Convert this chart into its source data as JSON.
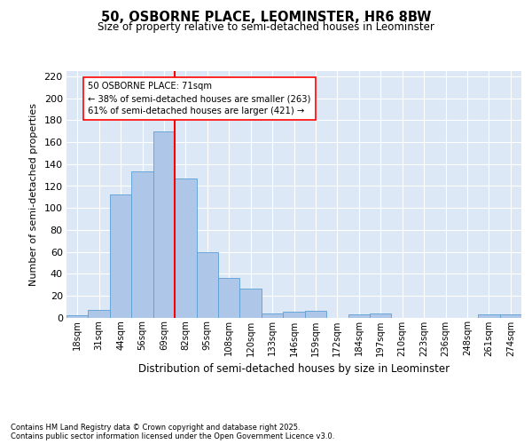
{
  "title": "50, OSBORNE PLACE, LEOMINSTER, HR6 8BW",
  "subtitle": "Size of property relative to semi-detached houses in Leominster",
  "xlabel": "Distribution of semi-detached houses by size in Leominster",
  "ylabel": "Number of semi-detached properties",
  "bin_labels": [
    "18sqm",
    "31sqm",
    "44sqm",
    "56sqm",
    "69sqm",
    "82sqm",
    "95sqm",
    "108sqm",
    "120sqm",
    "133sqm",
    "146sqm",
    "159sqm",
    "172sqm",
    "184sqm",
    "197sqm",
    "210sqm",
    "223sqm",
    "236sqm",
    "248sqm",
    "261sqm",
    "274sqm"
  ],
  "bar_values": [
    2,
    7,
    112,
    133,
    170,
    127,
    60,
    36,
    26,
    4,
    5,
    6,
    0,
    3,
    4,
    0,
    0,
    0,
    0,
    3,
    3
  ],
  "bar_color": "#aec6e8",
  "bar_edge_color": "#5a9fd4",
  "marker_label": "50 OSBORNE PLACE: 71sqm",
  "pct_smaller": "38% of semi-detached houses are smaller (263)",
  "pct_larger": "61% of semi-detached houses are larger (421)",
  "ylim": [
    0,
    225
  ],
  "yticks": [
    0,
    20,
    40,
    60,
    80,
    100,
    120,
    140,
    160,
    180,
    200,
    220
  ],
  "bg_color": "#dce8f5",
  "footer_line1": "Contains HM Land Registry data © Crown copyright and database right 2025.",
  "footer_line2": "Contains public sector information licensed under the Open Government Licence v3.0."
}
